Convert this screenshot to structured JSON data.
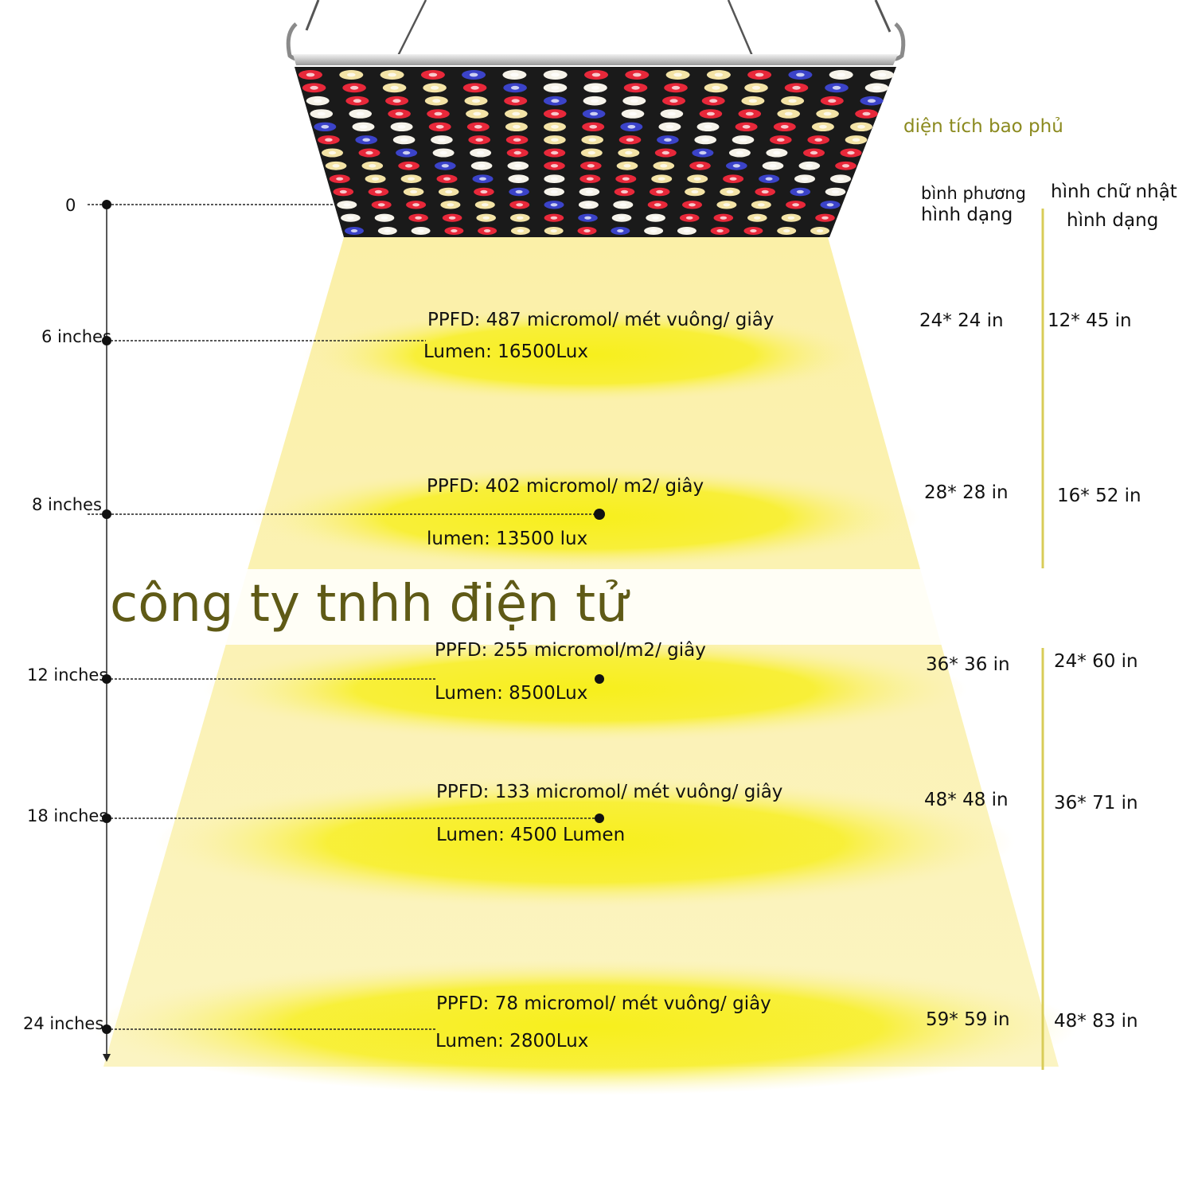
{
  "header": {
    "coverage_title": "diện tích bao phủ",
    "square_label_line1": "bình phương",
    "square_label_line2": "hình dạng",
    "rect_label_line1": "hình chữ nhật",
    "rect_label_line2": "hình dạng"
  },
  "zero_label": "0",
  "levels": [
    {
      "depth": "6 inches",
      "ppfd": "PPFD: 487 micromol/ mét vuông/ giây",
      "lumen": "Lumen: 16500Lux",
      "square": "24* 24 in",
      "rect": "12* 45 in"
    },
    {
      "depth": "8 inches",
      "ppfd": "PPFD: 402 micromol/ m2/ giây",
      "lumen": "lumen: 13500 lux",
      "square": "28* 28 in",
      "rect": "16* 52 in"
    },
    {
      "depth": "12 inches",
      "ppfd": "PPFD: 255 micromol/m2/ giây",
      "lumen": "Lumen: 8500Lux",
      "square": "36* 36 in",
      "rect": "24* 60 in"
    },
    {
      "depth": "18 inches",
      "ppfd": "PPFD: 133 micromol/ mét vuông/ giây",
      "lumen": "Lumen: 4500 Lumen",
      "square": "48* 48 in",
      "rect": "36* 71 in"
    },
    {
      "depth": "24 inches",
      "ppfd": "PPFD: 78 micromol/ mét vuông/ giây",
      "lumen": "Lumen: 2800Lux",
      "square": "59* 59 in",
      "rect": "48* 83 in"
    }
  ],
  "watermark": "công ty tnhh điện tử",
  "colors": {
    "accent_title": "#8b8a1f",
    "watermark": "#5f5a16",
    "light_cone": "#fbf2b0",
    "light_spot": "#f7ef1c",
    "panel_board": "#1a1a1a",
    "led_red": "#e8283a",
    "led_white": "#f6f3ea",
    "led_warm": "#f3e3a6",
    "led_blue": "#3b43c9",
    "divider": "#d8cc58"
  }
}
